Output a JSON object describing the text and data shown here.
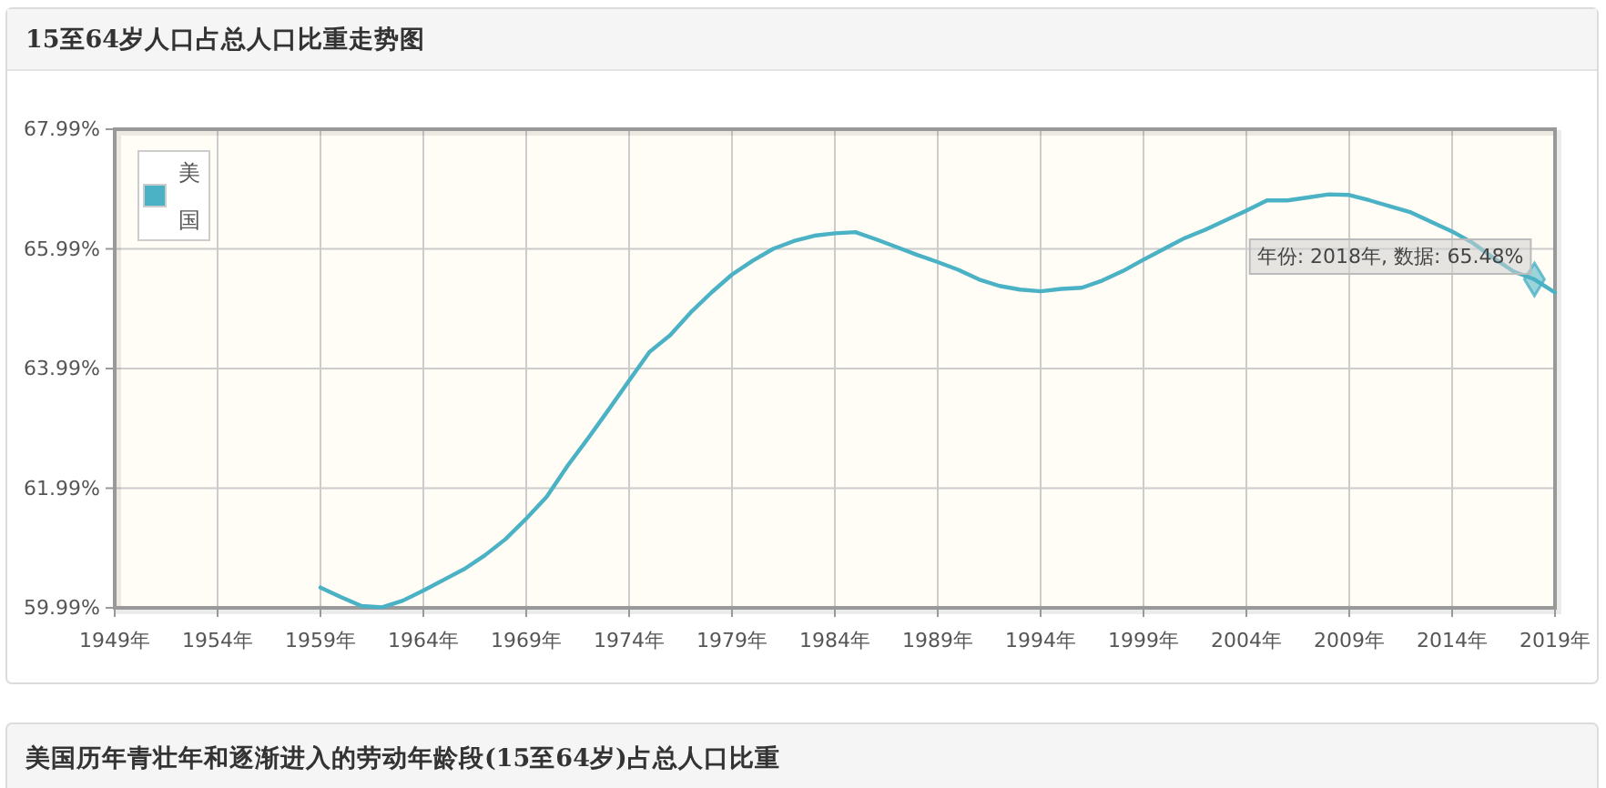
{
  "chart_data": {
    "type": "line",
    "title": "15至64岁人口占总人口比重走势图",
    "x": [
      1959,
      1960,
      1961,
      1962,
      1963,
      1964,
      1965,
      1966,
      1967,
      1968,
      1969,
      1970,
      1971,
      1972,
      1973,
      1974,
      1975,
      1976,
      1977,
      1978,
      1979,
      1980,
      1981,
      1982,
      1983,
      1984,
      1985,
      1986,
      1987,
      1988,
      1989,
      1990,
      1991,
      1992,
      1993,
      1994,
      1995,
      1996,
      1997,
      1998,
      1999,
      2000,
      2001,
      2002,
      2003,
      2004,
      2005,
      2006,
      2007,
      2008,
      2009,
      2010,
      2011,
      2012,
      2013,
      2014,
      2015,
      2016,
      2017,
      2018,
      2019
    ],
    "series": [
      {
        "name": "美国",
        "color": "#4bb2c5",
        "values": [
          60.33,
          60.17,
          60.02,
          60.0,
          60.11,
          60.28,
          60.46,
          60.64,
          60.87,
          61.14,
          61.48,
          61.85,
          62.36,
          62.82,
          63.3,
          63.79,
          64.27,
          64.55,
          64.93,
          65.26,
          65.56,
          65.79,
          65.99,
          66.12,
          66.21,
          66.25,
          66.27,
          66.15,
          66.02,
          65.89,
          65.77,
          65.64,
          65.48,
          65.37,
          65.31,
          65.28,
          65.32,
          65.34,
          65.46,
          65.62,
          65.81,
          65.99,
          66.17,
          66.31,
          66.47,
          66.63,
          66.8,
          66.8,
          66.85,
          66.9,
          66.89,
          66.8,
          66.7,
          66.6,
          66.44,
          66.28,
          66.09,
          65.84,
          65.61,
          65.48,
          65.26
        ]
      }
    ],
    "xlim": [
      1949,
      2019
    ],
    "xticks": [
      {
        "value": 1949,
        "label": "1949年"
      },
      {
        "value": 1954,
        "label": "1954年"
      },
      {
        "value": 1959,
        "label": "1959年"
      },
      {
        "value": 1964,
        "label": "1964年"
      },
      {
        "value": 1969,
        "label": "1969年"
      },
      {
        "value": 1974,
        "label": "1974年"
      },
      {
        "value": 1979,
        "label": "1979年"
      },
      {
        "value": 1984,
        "label": "1984年"
      },
      {
        "value": 1989,
        "label": "1989年"
      },
      {
        "value": 1994,
        "label": "1994年"
      },
      {
        "value": 1999,
        "label": "1999年"
      },
      {
        "value": 2004,
        "label": "2004年"
      },
      {
        "value": 2009,
        "label": "2009年"
      },
      {
        "value": 2014,
        "label": "2014年"
      },
      {
        "value": 2019,
        "label": "2019年"
      }
    ],
    "ylim": [
      59.99,
      67.99
    ],
    "yticks": [
      {
        "value": 59.99,
        "label": "59.99%"
      },
      {
        "value": 61.99,
        "label": "61.99%"
      },
      {
        "value": 63.99,
        "label": "63.99%"
      },
      {
        "value": 65.99,
        "label": "65.99%"
      },
      {
        "value": 67.99,
        "label": "67.99%"
      }
    ],
    "grid": true,
    "legend": "top left",
    "annotations": [
      {
        "text": "年份: 2018年, 数据: 65.48%",
        "x": 2018,
        "y": 65.48
      },
      "美国历年青壮年和逐渐进入的劳动年龄段(15至64岁)占总人口比重"
    ]
  }
}
